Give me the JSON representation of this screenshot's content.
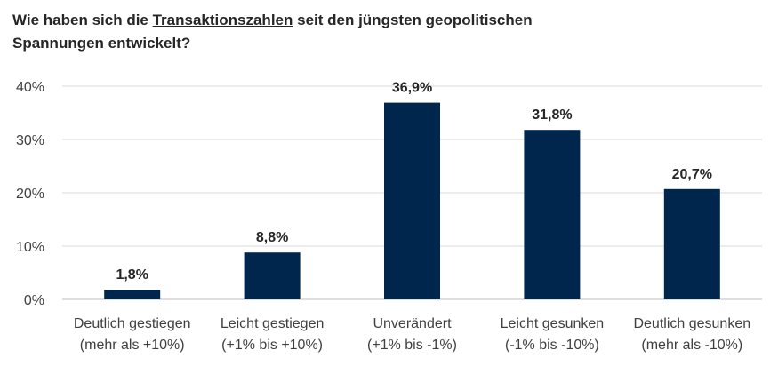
{
  "title": {
    "part1": "Wie haben sich die ",
    "part2": "Transaktionszahlen",
    "part3": " seit den jüngsten geopolitischen",
    "line2": "Spannungen entwickelt?"
  },
  "colors": {
    "bar": "#00264d",
    "grid": "#d9d9d9",
    "axis": "#bfbfbf"
  },
  "chart_data": {
    "type": "bar",
    "title": "Wie haben sich die Transaktionszahlen seit den jüngsten geopolitischen Spannungen entwickelt?",
    "categories": [
      [
        "Deutlich gestiegen",
        "(mehr als +10%)"
      ],
      [
        "Leicht gestiegen",
        "(+1% bis +10%)"
      ],
      [
        "Unverändert",
        "(+1% bis -1%)"
      ],
      [
        "Leicht gesunken",
        "(-1% bis -10%)"
      ],
      [
        "Deutlich gesunken",
        "(mehr als -10%)"
      ]
    ],
    "values": [
      1.8,
      8.8,
      36.9,
      31.8,
      20.7
    ],
    "value_labels": [
      "1,8%",
      "8,8%",
      "36,9%",
      "31,8%",
      "20,7%"
    ],
    "y_ticks": [
      0,
      10,
      20,
      30,
      40
    ],
    "y_tick_labels": [
      "0%",
      "10%",
      "20%",
      "30%",
      "40%"
    ],
    "ylim": [
      0,
      40
    ],
    "grid": true,
    "legend": "none"
  }
}
